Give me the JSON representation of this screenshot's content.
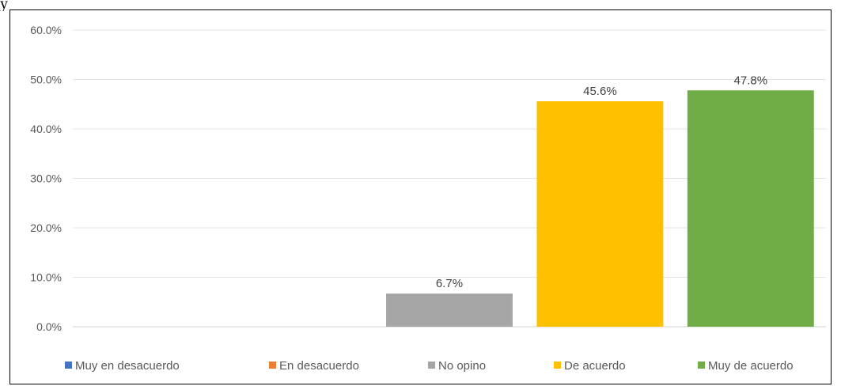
{
  "chart_data": {
    "type": "bar",
    "categories": [
      "Muy en desacuerdo",
      "En desacuerdo",
      "No opino",
      "De acuerdo",
      "Muy de acuerdo"
    ],
    "values": [
      0,
      0,
      6.7,
      45.6,
      47.8
    ],
    "data_labels": [
      "",
      "",
      "6.7%",
      "45.6%",
      "47.8%"
    ],
    "yticks": [
      "0.0%",
      "10.0%",
      "20.0%",
      "30.0%",
      "40.0%",
      "50.0%",
      "60.0%"
    ],
    "ylim": [
      0,
      60
    ],
    "grid": true,
    "legend_position": "bottom",
    "colors": [
      "#4472C4",
      "#ED7D31",
      "#A5A5A5",
      "#FFC000",
      "#70AD47"
    ]
  },
  "fragment_text": "y"
}
